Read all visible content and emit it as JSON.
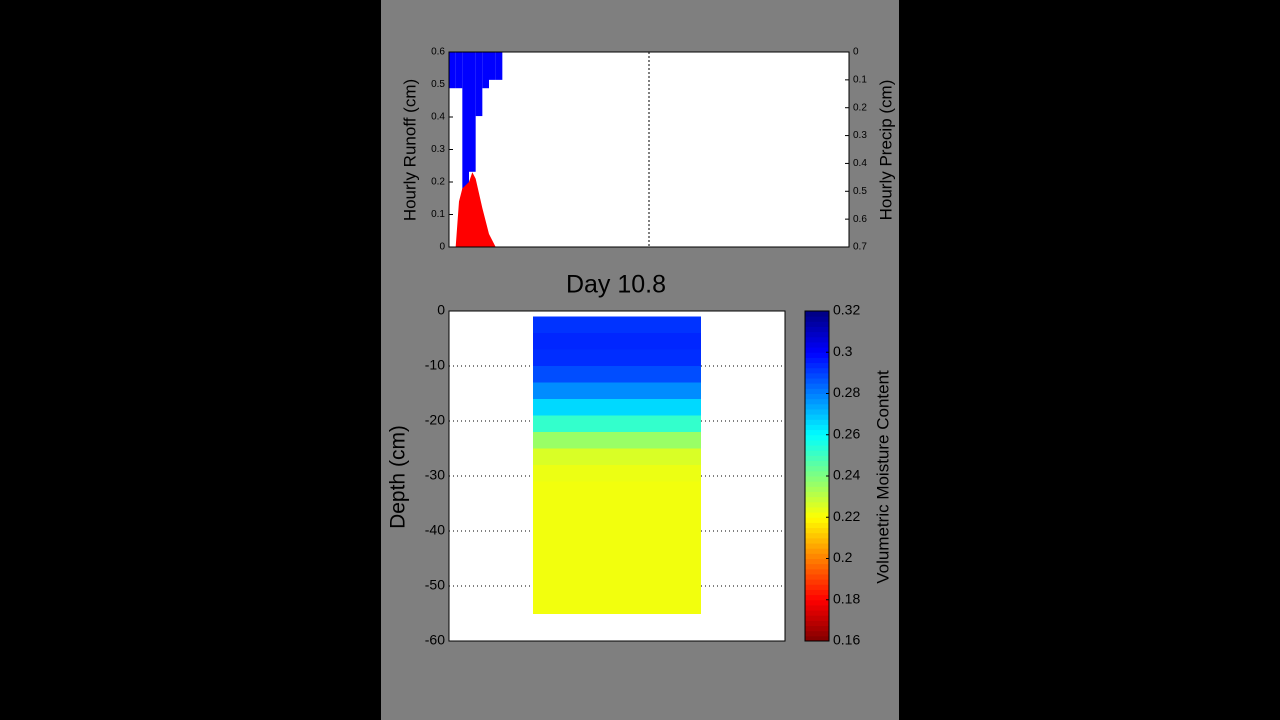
{
  "chart_data": [
    {
      "type": "bar",
      "ylabel": "Hourly Runoff (cm)",
      "y2label": "Hourly Precip (cm)",
      "xlim": [
        0,
        60
      ],
      "current_x": 30,
      "ylim": [
        0,
        0.6
      ],
      "yticks": [
        0,
        0.1,
        0.2,
        0.3,
        0.4,
        0.5,
        0.6
      ],
      "y2lim": [
        0,
        0.7
      ],
      "y2ticks": [
        0,
        0.1,
        0.2,
        0.3,
        0.4,
        0.5,
        0.6,
        0.7
      ],
      "y2_reversed": true,
      "series": [
        {
          "type": "bar",
          "axis": "y2",
          "color": "#0000ff",
          "bar_width": 1,
          "x": [
            0.5,
            1.5,
            2.5,
            3.5,
            4.5,
            5.5,
            6.5,
            7.5
          ],
          "values": [
            0.13,
            0.13,
            0.5,
            0.43,
            0.23,
            0.13,
            0.1,
            0.1
          ]
        },
        {
          "type": "area",
          "color": "#ff0000",
          "x": [
            1,
            1.5,
            2,
            3,
            3.5,
            4,
            5,
            6,
            7
          ],
          "values": [
            0,
            0.14,
            0.18,
            0.2,
            0.23,
            0.21,
            0.12,
            0.04,
            0
          ]
        }
      ]
    },
    {
      "type": "heatmap",
      "title": "Day 10.8",
      "ylabel": "Depth (cm)",
      "ylim": [
        -60,
        0
      ],
      "yticks": [
        0,
        -10,
        -20,
        -30,
        -40,
        -50,
        -60
      ],
      "grid": true,
      "depth_edges": [
        -1,
        -4,
        -7,
        -10,
        -13,
        -16,
        -19,
        -22,
        -25,
        -28,
        -31,
        -34,
        -37,
        -40,
        -43,
        -46,
        -49,
        -52,
        -55
      ],
      "values": [
        0.292,
        0.294,
        0.293,
        0.288,
        0.278,
        0.266,
        0.252,
        0.236,
        0.226,
        0.223,
        0.222,
        0.222,
        0.222,
        0.222,
        0.222,
        0.222,
        0.222,
        0.222
      ],
      "colormap": "jet",
      "colormap_reversed": true,
      "clim": [
        0.16,
        0.32
      ],
      "colorbar_ticks": [
        0.16,
        0.18,
        0.2,
        0.22,
        0.24,
        0.26,
        0.28,
        0.3,
        0.32
      ],
      "colorbar_label": "Volumetric Moisture Content"
    }
  ]
}
